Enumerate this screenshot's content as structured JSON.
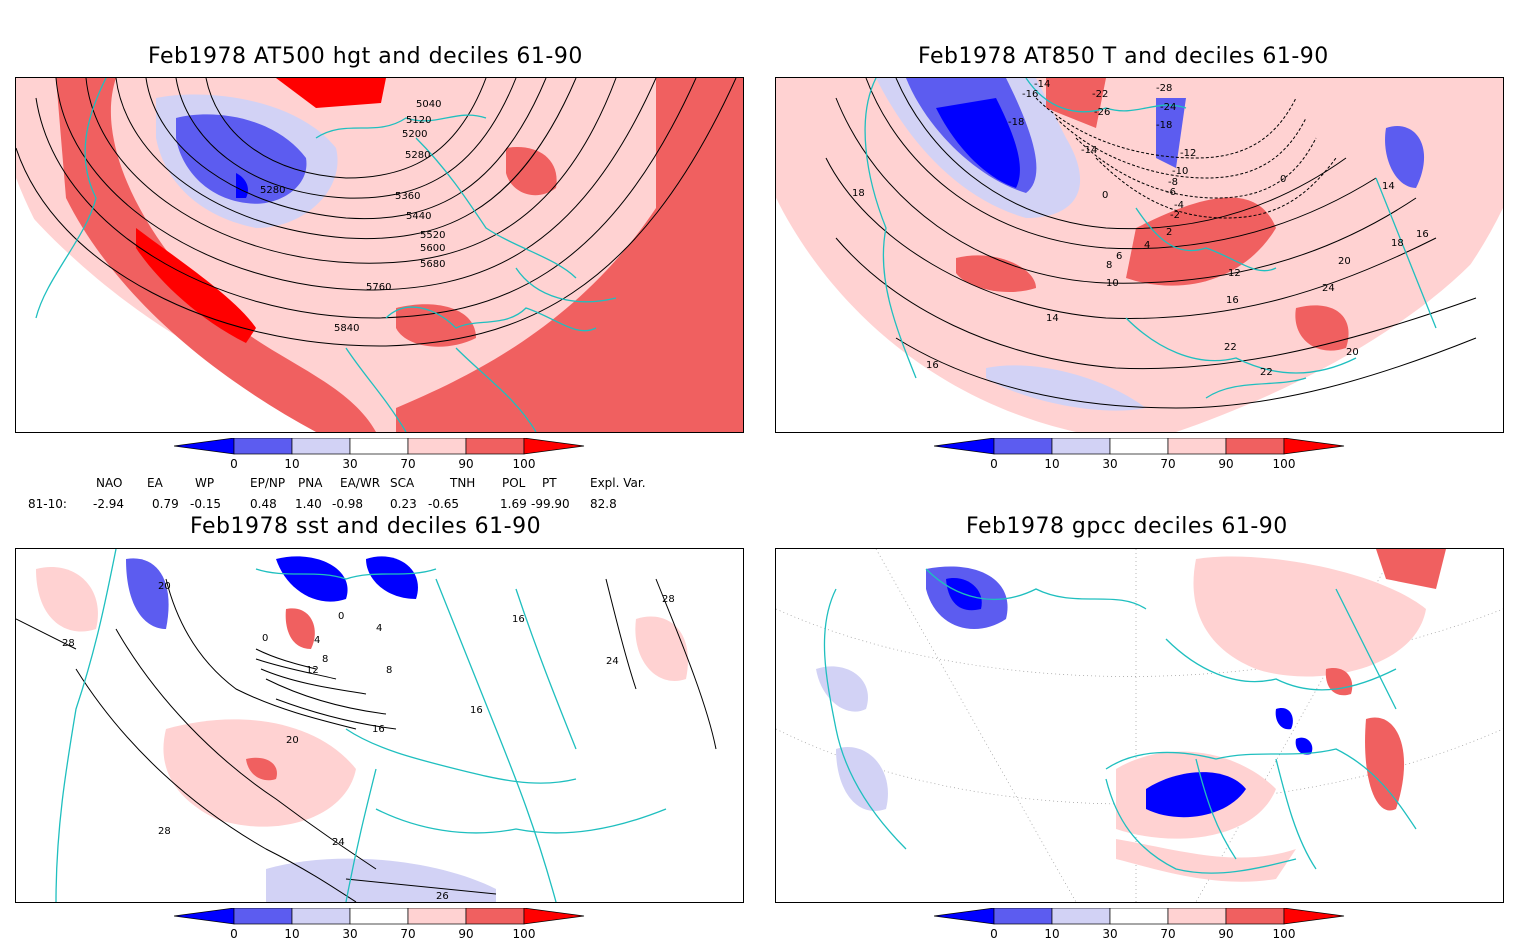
{
  "panels": [
    {
      "id": "at500",
      "title": "Feb1978 AT500 hgt and deciles 61-90",
      "contour_labels": [
        "5040",
        "5120",
        "5200",
        "5280",
        "5280",
        "5360",
        "5440",
        "5520",
        "5600",
        "5680",
        "5760",
        "5840"
      ]
    },
    {
      "id": "at850",
      "title": "Feb1978 AT850 T and deciles 61-90",
      "contour_labels": [
        "-14",
        "-16",
        "-18",
        "-22",
        "-26",
        "-28",
        "-24",
        "-18",
        "-14",
        "-12",
        "-10",
        "-8",
        "-6",
        "-4",
        "-2",
        "0",
        "0",
        "2",
        "4",
        "6",
        "8",
        "10",
        "12",
        "14",
        "14",
        "16",
        "16",
        "18",
        "18",
        "20",
        "20",
        "22",
        "22",
        "24",
        "16"
      ]
    },
    {
      "id": "sst",
      "title": "Feb1978 sst and deciles 61-90",
      "contour_labels": [
        "20",
        "28",
        "0",
        "4",
        "8",
        "12",
        "16",
        "20",
        "24",
        "28",
        "26",
        "0",
        "4",
        "8",
        "16",
        "24",
        "28",
        "16"
      ]
    },
    {
      "id": "gpcc",
      "title": "Feb1978 gpcc deciles 61-90",
      "contour_labels": []
    }
  ],
  "colorbar": {
    "ticks": [
      "0",
      "10",
      "30",
      "70",
      "90",
      "100"
    ],
    "colors": [
      "#0000ff",
      "#5c5cf0",
      "#d2d2f5",
      "#ffffff",
      "#ffd2d2",
      "#f06060",
      "#ff0000"
    ]
  },
  "indices": {
    "headers": [
      "NAO",
      "EA",
      "WP",
      "EP/NP",
      "PNA",
      "EA/WR",
      "SCA",
      "TNH",
      "POL",
      "PT",
      "Expl. Var."
    ],
    "row_label": "81-10:",
    "values": [
      "-2.94",
      "0.79",
      "-0.15",
      "0.48",
      "1.40",
      "-0.98",
      "0.23",
      "-0.65",
      "1.69",
      "-99.90",
      "82.8"
    ]
  }
}
